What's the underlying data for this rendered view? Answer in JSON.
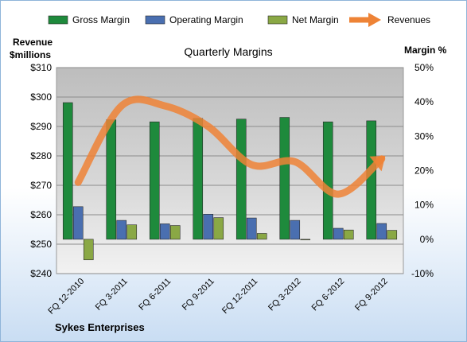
{
  "chart_data": {
    "type": "bar",
    "title": "Quarterly Margins",
    "company": "Sykes Enterprises",
    "left_axis_label_line1": "Revenue",
    "left_axis_label_line2": "$millions",
    "right_axis_label": "Margin %",
    "legend_placement": "top",
    "grid": true,
    "categories": [
      "FQ 12-2010",
      "FQ 3-2011",
      "FQ 6-2011",
      "FQ 9-2011",
      "FQ 12-2011",
      "FQ 3-2012",
      "FQ 6-2012",
      "FQ 9-2012"
    ],
    "left_axis": {
      "min": 240,
      "max": 310,
      "step": 10,
      "tick_labels": [
        "$240",
        "$250",
        "$260",
        "$270",
        "$280",
        "$290",
        "$300",
        "$310"
      ]
    },
    "right_axis": {
      "min": -10,
      "max": 50,
      "step": 10,
      "tick_labels": [
        "-10%",
        "0%",
        "10%",
        "20%",
        "30%",
        "40%",
        "50%"
      ]
    },
    "series": [
      {
        "name": "Gross Margin",
        "kind": "bar",
        "axis": "right",
        "color": "#1e8a3c",
        "values": [
          39.8,
          34.8,
          34.2,
          35.2,
          35.0,
          35.5,
          34.2,
          34.5
        ]
      },
      {
        "name": "Operating Margin",
        "kind": "bar",
        "axis": "right",
        "color": "#4a6fb0",
        "values": [
          9.5,
          5.5,
          4.5,
          7.3,
          6.2,
          5.5,
          3.2,
          4.6
        ]
      },
      {
        "name": "Net Margin",
        "kind": "bar",
        "axis": "right",
        "color": "#8aa845",
        "values": [
          -6.0,
          4.2,
          4.0,
          6.3,
          1.7,
          0.0,
          2.7,
          2.6
        ]
      },
      {
        "name": "Revenues",
        "kind": "line",
        "axis": "left",
        "color": "#ee8336",
        "values": [
          271,
          297,
          297,
          290,
          277,
          278,
          267,
          279
        ]
      }
    ]
  }
}
